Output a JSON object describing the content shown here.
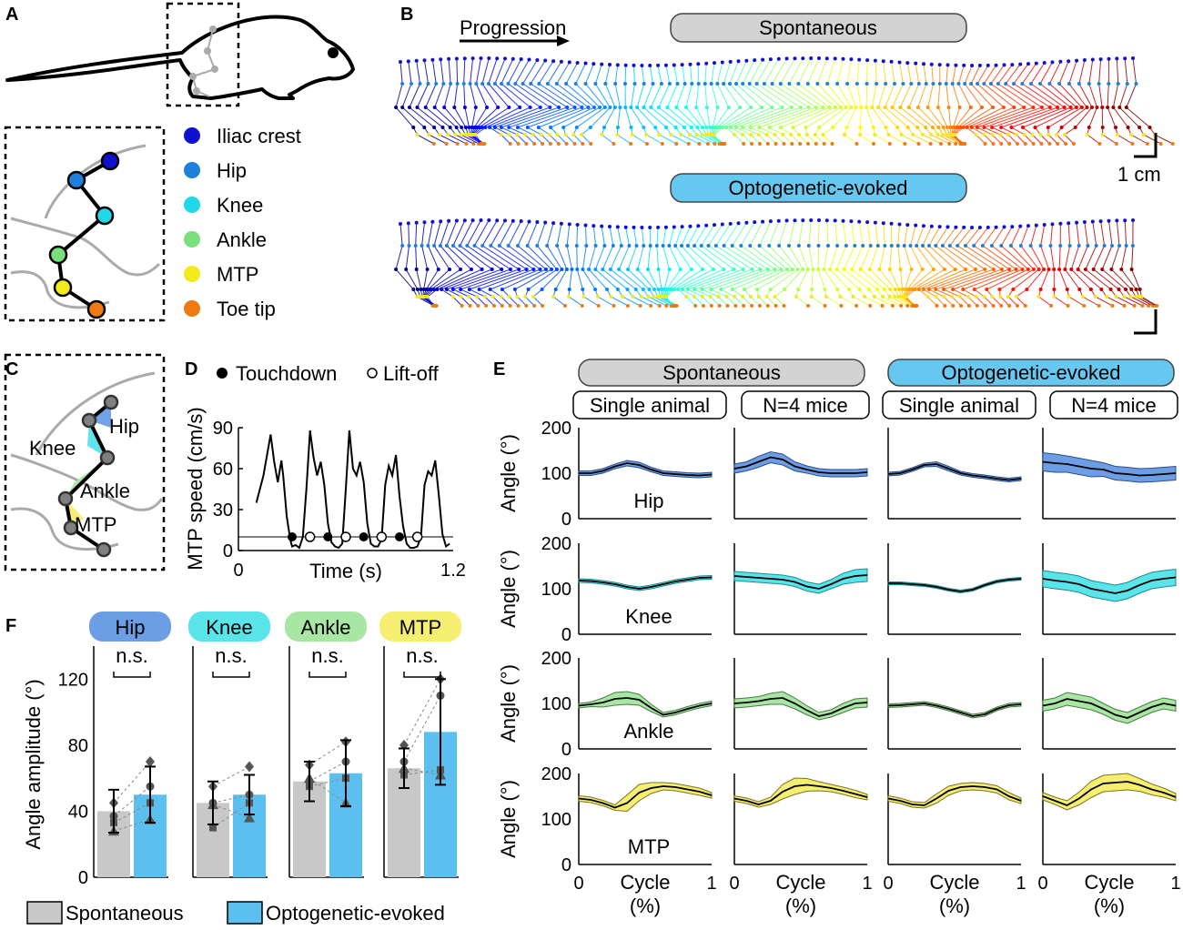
{
  "panels": {
    "a": "A",
    "b": "B",
    "c": "C",
    "d": "D",
    "e": "E",
    "f": "F"
  },
  "legend": {
    "items": [
      {
        "label": "Iliac crest",
        "color": "#1010d0"
      },
      {
        "label": "Hip",
        "color": "#1e7fdc"
      },
      {
        "label": "Knee",
        "color": "#22d8e8"
      },
      {
        "label": "Ankle",
        "color": "#7be07b"
      },
      {
        "label": "MTP",
        "color": "#f2ea1a"
      },
      {
        "label": "Toe tip",
        "color": "#f07a12"
      }
    ]
  },
  "panel_b": {
    "progression_label": "Progression",
    "spontaneous_label": "Spontaneous",
    "evoked_label": "Optogenetic-evoked",
    "scale_label": "1 cm"
  },
  "panel_c": {
    "hip": "Hip",
    "knee": "Knee",
    "ankle": "Ankle",
    "mtp": "MTP"
  },
  "colors": {
    "spontaneous_pill": "#d3d3d3",
    "evoked_pill": "#66c8f0",
    "hip": "#6c9ee6",
    "knee": "#59e4ea",
    "ankle": "#a8e6a3",
    "mtp": "#f5ee70",
    "bar_spont": "#c8c8c8",
    "bar_evoked": "#5bc0ef"
  },
  "chart_data": [
    {
      "id": "D",
      "type": "line",
      "title": "",
      "xlabel": "Time (s)",
      "ylabel": "MTP speed (cm/s)",
      "xlim": [
        0,
        1.2
      ],
      "ylim": [
        0,
        90
      ],
      "xticks": [
        "0",
        "1.2"
      ],
      "yticks": [
        "0",
        "30",
        "60",
        "90"
      ],
      "legend": {
        "touchdown": "Touchdown",
        "liftoff": "Lift-off"
      },
      "threshold": 10,
      "x": [
        0.1,
        0.14,
        0.18,
        0.2,
        0.22,
        0.24,
        0.25,
        0.27,
        0.29,
        0.3,
        0.32,
        0.34,
        0.36,
        0.38,
        0.4,
        0.42,
        0.44,
        0.46,
        0.48,
        0.5,
        0.52,
        0.54,
        0.56,
        0.58,
        0.6,
        0.62,
        0.64,
        0.66,
        0.68,
        0.7,
        0.72,
        0.74,
        0.76,
        0.78,
        0.8,
        0.82,
        0.84,
        0.86,
        0.88,
        0.9,
        0.92,
        0.94,
        0.96,
        0.98,
        1.0,
        1.02,
        1.04,
        1.06,
        1.08,
        1.1,
        1.12,
        1.14,
        1.16,
        1.18
      ],
      "y": [
        35,
        55,
        85,
        65,
        50,
        66,
        55,
        25,
        8,
        3,
        4,
        2,
        10,
        45,
        88,
        68,
        55,
        65,
        48,
        20,
        6,
        3,
        2,
        5,
        45,
        88,
        60,
        55,
        65,
        50,
        20,
        5,
        3,
        3,
        8,
        48,
        62,
        55,
        70,
        40,
        18,
        5,
        2,
        2,
        3,
        10,
        48,
        58,
        55,
        66,
        40,
        12,
        3,
        5
      ],
      "touchdown_x": [
        0.3,
        0.5,
        0.7,
        0.9
      ],
      "liftoff_x": [
        0.4,
        0.6,
        0.8,
        1.0
      ]
    },
    {
      "id": "E",
      "type": "area",
      "groups": [
        "Spontaneous",
        "Optogenetic-evoked"
      ],
      "subgroups": [
        "Single animal",
        "N=4 mice",
        "Single animal",
        "N=4 mice"
      ],
      "ylabel": "Angle (°)",
      "xlabel": "Cycle",
      "xlabel2": "(%)",
      "xticks": [
        "0",
        "1"
      ],
      "yticks": [
        "0",
        "100",
        "200"
      ],
      "rows": [
        {
          "joint": "Hip",
          "ylim": [
            0,
            200
          ],
          "series": [
            {
              "mean": [
                100,
                100,
                105,
                115,
                122,
                118,
                108,
                100,
                98,
                96,
                95,
                97
              ],
              "sd": [
                5,
                5,
                5,
                5,
                6,
                6,
                5,
                5,
                5,
                5,
                5,
                5
              ]
            },
            {
              "mean": [
                110,
                115,
                125,
                135,
                130,
                115,
                108,
                102,
                100,
                100,
                100,
                102
              ],
              "sd": [
                10,
                10,
                12,
                12,
                12,
                10,
                8,
                8,
                8,
                8,
                8,
                8
              ]
            },
            {
              "mean": [
                98,
                100,
                108,
                118,
                120,
                110,
                100,
                95,
                92,
                88,
                85,
                88
              ],
              "sd": [
                4,
                4,
                4,
                4,
                5,
                5,
                4,
                4,
                4,
                4,
                4,
                4
              ]
            },
            {
              "mean": [
                125,
                122,
                120,
                115,
                110,
                108,
                100,
                98,
                95,
                96,
                98,
                100
              ],
              "sd": [
                20,
                20,
                18,
                18,
                18,
                15,
                15,
                15,
                15,
                15,
                15,
                15
              ]
            }
          ]
        },
        {
          "joint": "Knee",
          "ylim": [
            0,
            200
          ],
          "series": [
            {
              "mean": [
                118,
                117,
                114,
                110,
                104,
                100,
                104,
                110,
                116,
                120,
                124,
                125
              ],
              "sd": [
                4,
                4,
                4,
                4,
                4,
                4,
                4,
                4,
                4,
                4,
                4,
                4
              ]
            },
            {
              "mean": [
                128,
                126,
                124,
                122,
                120,
                115,
                105,
                100,
                110,
                122,
                128,
                130
              ],
              "sd": [
                10,
                10,
                10,
                10,
                10,
                10,
                10,
                10,
                10,
                12,
                14,
                14
              ]
            },
            {
              "mean": [
                112,
                112,
                110,
                108,
                104,
                98,
                94,
                98,
                108,
                116,
                120,
                122
              ],
              "sd": [
                3,
                3,
                3,
                3,
                3,
                3,
                3,
                3,
                3,
                3,
                3,
                3
              ]
            },
            {
              "mean": [
                122,
                118,
                115,
                110,
                100,
                95,
                90,
                96,
                108,
                118,
                122,
                125
              ],
              "sd": [
                18,
                18,
                18,
                18,
                18,
                18,
                18,
                18,
                18,
                18,
                18,
                18
              ]
            }
          ]
        },
        {
          "joint": "Ankle",
          "ylim": [
            0,
            200
          ],
          "series": [
            {
              "mean": [
                95,
                98,
                102,
                110,
                112,
                108,
                90,
                75,
                80,
                88,
                95,
                100
              ],
              "sd": [
                5,
                5,
                10,
                14,
                14,
                12,
                8,
                5,
                5,
                5,
                5,
                5
              ]
            },
            {
              "mean": [
                100,
                102,
                105,
                110,
                112,
                100,
                85,
                72,
                78,
                90,
                100,
                102
              ],
              "sd": [
                10,
                10,
                10,
                12,
                14,
                12,
                10,
                8,
                8,
                10,
                10,
                10
              ]
            },
            {
              "mean": [
                95,
                96,
                98,
                100,
                95,
                88,
                80,
                72,
                76,
                88,
                96,
                98
              ],
              "sd": [
                4,
                4,
                4,
                4,
                4,
                4,
                4,
                4,
                4,
                4,
                4,
                4
              ]
            },
            {
              "mean": [
                95,
                100,
                110,
                105,
                100,
                88,
                75,
                68,
                80,
                92,
                100,
                95
              ],
              "sd": [
                12,
                12,
                14,
                14,
                14,
                12,
                12,
                12,
                12,
                12,
                12,
                12
              ]
            }
          ]
        },
        {
          "joint": "MTP",
          "ylim": [
            0,
            200
          ],
          "series": [
            {
              "mean": [
                145,
                142,
                135,
                125,
                135,
                158,
                168,
                172,
                170,
                165,
                160,
                152
              ],
              "sd": [
                6,
                6,
                6,
                6,
                18,
                18,
                12,
                8,
                8,
                8,
                8,
                6
              ]
            },
            {
              "mean": [
                145,
                140,
                132,
                140,
                160,
                172,
                175,
                172,
                168,
                162,
                155,
                148
              ],
              "sd": [
                6,
                6,
                6,
                8,
                16,
                18,
                14,
                10,
                8,
                8,
                8,
                6
              ]
            },
            {
              "mean": [
                145,
                140,
                132,
                130,
                145,
                162,
                170,
                172,
                170,
                165,
                150,
                140
              ],
              "sd": [
                6,
                6,
                6,
                6,
                10,
                10,
                8,
                8,
                8,
                8,
                8,
                6
              ]
            },
            {
              "mean": [
                150,
                140,
                130,
                145,
                165,
                178,
                180,
                182,
                175,
                165,
                158,
                148
              ],
              "sd": [
                8,
                8,
                10,
                14,
                18,
                18,
                18,
                18,
                14,
                12,
                10,
                8
              ]
            }
          ]
        }
      ]
    },
    {
      "id": "F",
      "type": "bar",
      "ylabel": "Angle amplitude (°)",
      "ylim": [
        0,
        140
      ],
      "yticks": [
        "0",
        "40",
        "80",
        "120"
      ],
      "significance": "n.s.",
      "categories": [
        "Hip",
        "Knee",
        "Ankle",
        "MTP"
      ],
      "series": [
        {
          "name": "Spontaneous",
          "values": [
            40,
            45,
            58,
            66
          ],
          "sd": [
            13,
            13,
            12,
            12
          ],
          "points": [
            [
              45,
              37,
              33,
              28
            ],
            [
              55,
              45,
              30,
              44
            ],
            [
              68,
              58,
              55,
              60
            ],
            [
              80,
              70,
              62,
              66
            ]
          ]
        },
        {
          "name": "Optogenetic-evoked",
          "values": [
            50,
            50,
            63,
            88
          ],
          "sd": [
            17,
            12,
            20,
            32
          ],
          "points": [
            [
              70,
              55,
              45,
              35
            ],
            [
              67,
              50,
              45,
              36
            ],
            [
              82,
              70,
              60,
              45
            ],
            [
              120,
              110,
              65,
              62
            ]
          ]
        }
      ],
      "legend": [
        "Spontaneous",
        "Optogenetic-evoked"
      ]
    }
  ]
}
